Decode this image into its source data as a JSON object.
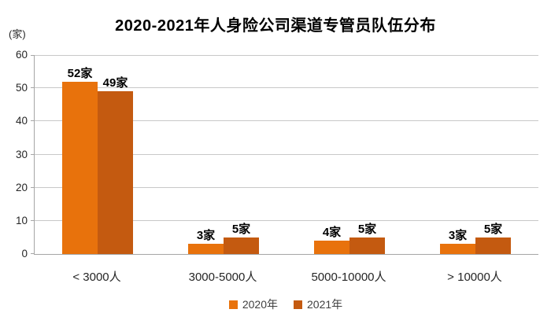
{
  "chart_data": {
    "type": "bar",
    "title": "2020-2021年人身险公司渠道专管员队伍分布",
    "y_unit": "(家)",
    "categories": [
      "< 3000人",
      "3000-5000人",
      "5000-10000人",
      "> 10000人"
    ],
    "series": [
      {
        "name": "2020年",
        "color": "#e8720c",
        "values": [
          52,
          3,
          4,
          3
        ],
        "data_labels": [
          "52家",
          "3家",
          "4家",
          "3家"
        ]
      },
      {
        "name": "2021年",
        "color": "#c45a10",
        "values": [
          49,
          5,
          5,
          5
        ],
        "data_labels": [
          "49家",
          "5家",
          "5家",
          "5家"
        ]
      }
    ],
    "yticks": [
      0,
      10,
      20,
      30,
      40,
      50,
      60
    ],
    "ylim": [
      0,
      60
    ],
    "grid": true,
    "legend_position": "bottom",
    "colors": {
      "gridline": "#c8c8c8",
      "axis_line": "#a6a6a6",
      "title_text": "#000000",
      "tick_text": "#262626",
      "legend_text": "#404040"
    }
  }
}
